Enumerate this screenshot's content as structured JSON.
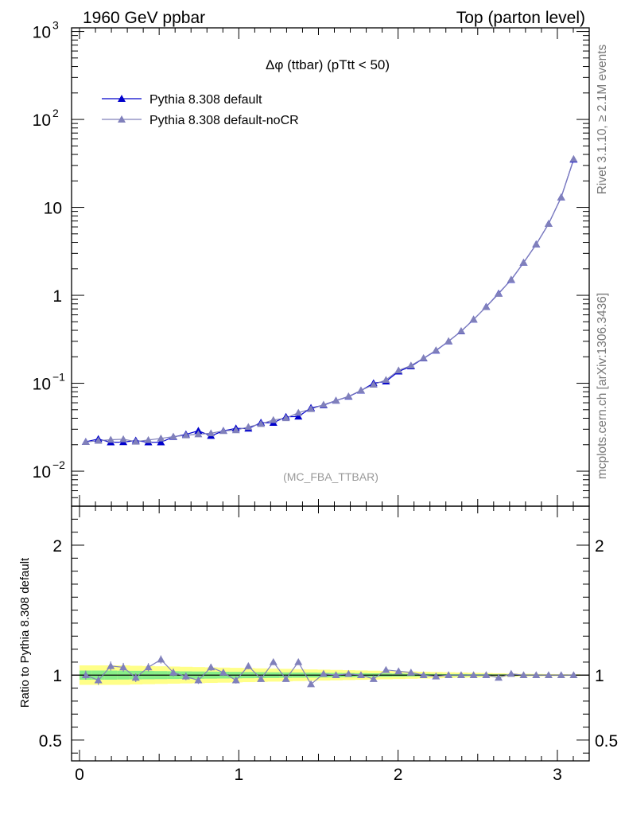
{
  "header": {
    "left": "1960 GeV ppbar",
    "right": "Top (parton level)"
  },
  "side_labels": {
    "rivet": "Rivet 3.1.10, ≥ 2.1M events",
    "mcplots": "mcplots.cern.ch [arXiv:1306.3436]"
  },
  "colors": {
    "series_default": "#0000cc",
    "series_nocr": "#8080bb",
    "band_outer": "#ffff88",
    "band_inner": "#88ee88"
  },
  "chart_data": [
    {
      "type": "line",
      "title": "Δφ (ttbar) (pTtt < 50)",
      "annotation": "(MC_FBA_TTBAR)",
      "yscale": "log",
      "xlim": [
        -0.05,
        3.2
      ],
      "ylim": [
        0.004,
        1100
      ],
      "y_ticks": [
        {
          "value": 0.01,
          "base": "10",
          "exp": "−2"
        },
        {
          "value": 0.1,
          "base": "10",
          "exp": "−1"
        },
        {
          "value": 1,
          "base": "1",
          "exp": ""
        },
        {
          "value": 10,
          "base": "10",
          "exp": ""
        },
        {
          "value": 100,
          "base": "10",
          "exp": "2"
        },
        {
          "value": 1000,
          "base": "10",
          "exp": "3"
        }
      ],
      "legend_position": "top-left",
      "x": [
        0.039,
        0.118,
        0.196,
        0.275,
        0.353,
        0.432,
        0.511,
        0.589,
        0.668,
        0.746,
        0.825,
        0.903,
        0.982,
        1.06,
        1.139,
        1.217,
        1.296,
        1.374,
        1.453,
        1.532,
        1.61,
        1.689,
        1.767,
        1.846,
        1.924,
        2.003,
        2.081,
        2.16,
        2.238,
        2.317,
        2.396,
        2.474,
        2.553,
        2.631,
        2.71,
        2.788,
        2.867,
        2.945,
        3.024,
        3.102
      ],
      "series": [
        {
          "name": "Pythia 8.308 default",
          "values": [
            0.0216,
            0.0232,
            0.0213,
            0.0214,
            0.0223,
            0.0213,
            0.0213,
            0.0245,
            0.0262,
            0.0288,
            0.0252,
            0.0288,
            0.0307,
            0.0305,
            0.0357,
            0.0355,
            0.0415,
            0.0418,
            0.0525,
            0.0563,
            0.0635,
            0.0705,
            0.0825,
            0.1,
            0.105,
            0.136,
            0.156,
            0.192,
            0.235,
            0.3,
            0.39,
            0.53,
            0.74,
            1.05,
            1.5,
            2.35,
            3.8,
            6.5,
            13.0,
            35.0
          ]
        },
        {
          "name": "Pythia 8.308 default-noCR",
          "values": [
            0.0215,
            0.0222,
            0.0228,
            0.0231,
            0.0217,
            0.0226,
            0.0236,
            0.0247,
            0.0256,
            0.0263,
            0.027,
            0.0287,
            0.0293,
            0.0318,
            0.0345,
            0.0382,
            0.0401,
            0.0462,
            0.051,
            0.057,
            0.0635,
            0.071,
            0.083,
            0.0965,
            0.109,
            0.14,
            0.159,
            0.193,
            0.237,
            0.301,
            0.392,
            0.532,
            0.738,
            1.04,
            1.51,
            2.35,
            3.8,
            6.5,
            13.0,
            35.5
          ]
        }
      ]
    },
    {
      "type": "line",
      "ylabel": "Ratio to Pythia 8.308 default",
      "xlim": [
        -0.05,
        3.2
      ],
      "ylim": [
        0.34,
        2.3
      ],
      "x_ticks": [
        "0",
        "1",
        "2",
        "3"
      ],
      "y_ticks": [
        "0.5",
        "1",
        "2"
      ],
      "reference_line": 1,
      "band_outer_halfwidth": [
        0.075,
        0.075,
        0.075,
        0.075,
        0.072,
        0.07,
        0.068,
        0.066,
        0.064,
        0.062,
        0.06,
        0.058,
        0.056,
        0.054,
        0.052,
        0.05,
        0.048,
        0.046,
        0.044,
        0.042,
        0.04,
        0.038,
        0.036,
        0.034,
        0.032,
        0.03,
        0.028,
        0.026,
        0.024,
        0.022,
        0.02,
        0.018,
        0.016,
        0.014,
        0.012,
        0.01,
        0.009,
        0.008,
        0.007,
        0.006
      ],
      "band_inner_halfwidth": [
        0.035,
        0.035,
        0.035,
        0.034,
        0.033,
        0.032,
        0.031,
        0.03,
        0.029,
        0.028,
        0.027,
        0.026,
        0.025,
        0.024,
        0.023,
        0.022,
        0.021,
        0.02,
        0.019,
        0.018,
        0.017,
        0.016,
        0.015,
        0.014,
        0.013,
        0.012,
        0.011,
        0.01,
        0.009,
        0.008,
        0.008,
        0.007,
        0.007,
        0.006,
        0.006,
        0.005,
        0.005,
        0.004,
        0.004,
        0.004
      ],
      "series": [
        {
          "name": "Pythia 8.308 default-noCR",
          "values": [
            1.0,
            0.96,
            1.07,
            1.06,
            0.98,
            1.06,
            1.12,
            1.02,
            0.99,
            0.96,
            1.06,
            1.02,
            0.96,
            1.07,
            0.97,
            1.1,
            0.97,
            1.1,
            0.93,
            1.01,
            1.0,
            1.01,
            1.0,
            0.97,
            1.04,
            1.03,
            1.02,
            1.0,
            0.99,
            1.0,
            1.0,
            1.0,
            1.0,
            0.98,
            1.01,
            1.0,
            1.0,
            1.0,
            1.0,
            1.0
          ],
          "errors": [
            0.035,
            0.035,
            0.035,
            0.034,
            0.033,
            0.032,
            0.031,
            0.03,
            0.029,
            0.028,
            0.027,
            0.026,
            0.025,
            0.024,
            0.023,
            0.022,
            0.021,
            0.02,
            0.019,
            0.018,
            0.017,
            0.016,
            0.015,
            0.014,
            0.013,
            0.012,
            0.011,
            0.01,
            0.009,
            0.008,
            0.008,
            0.007,
            0.007,
            0.006,
            0.006,
            0.005,
            0.005,
            0.004,
            0.004,
            0.004
          ]
        }
      ]
    }
  ]
}
